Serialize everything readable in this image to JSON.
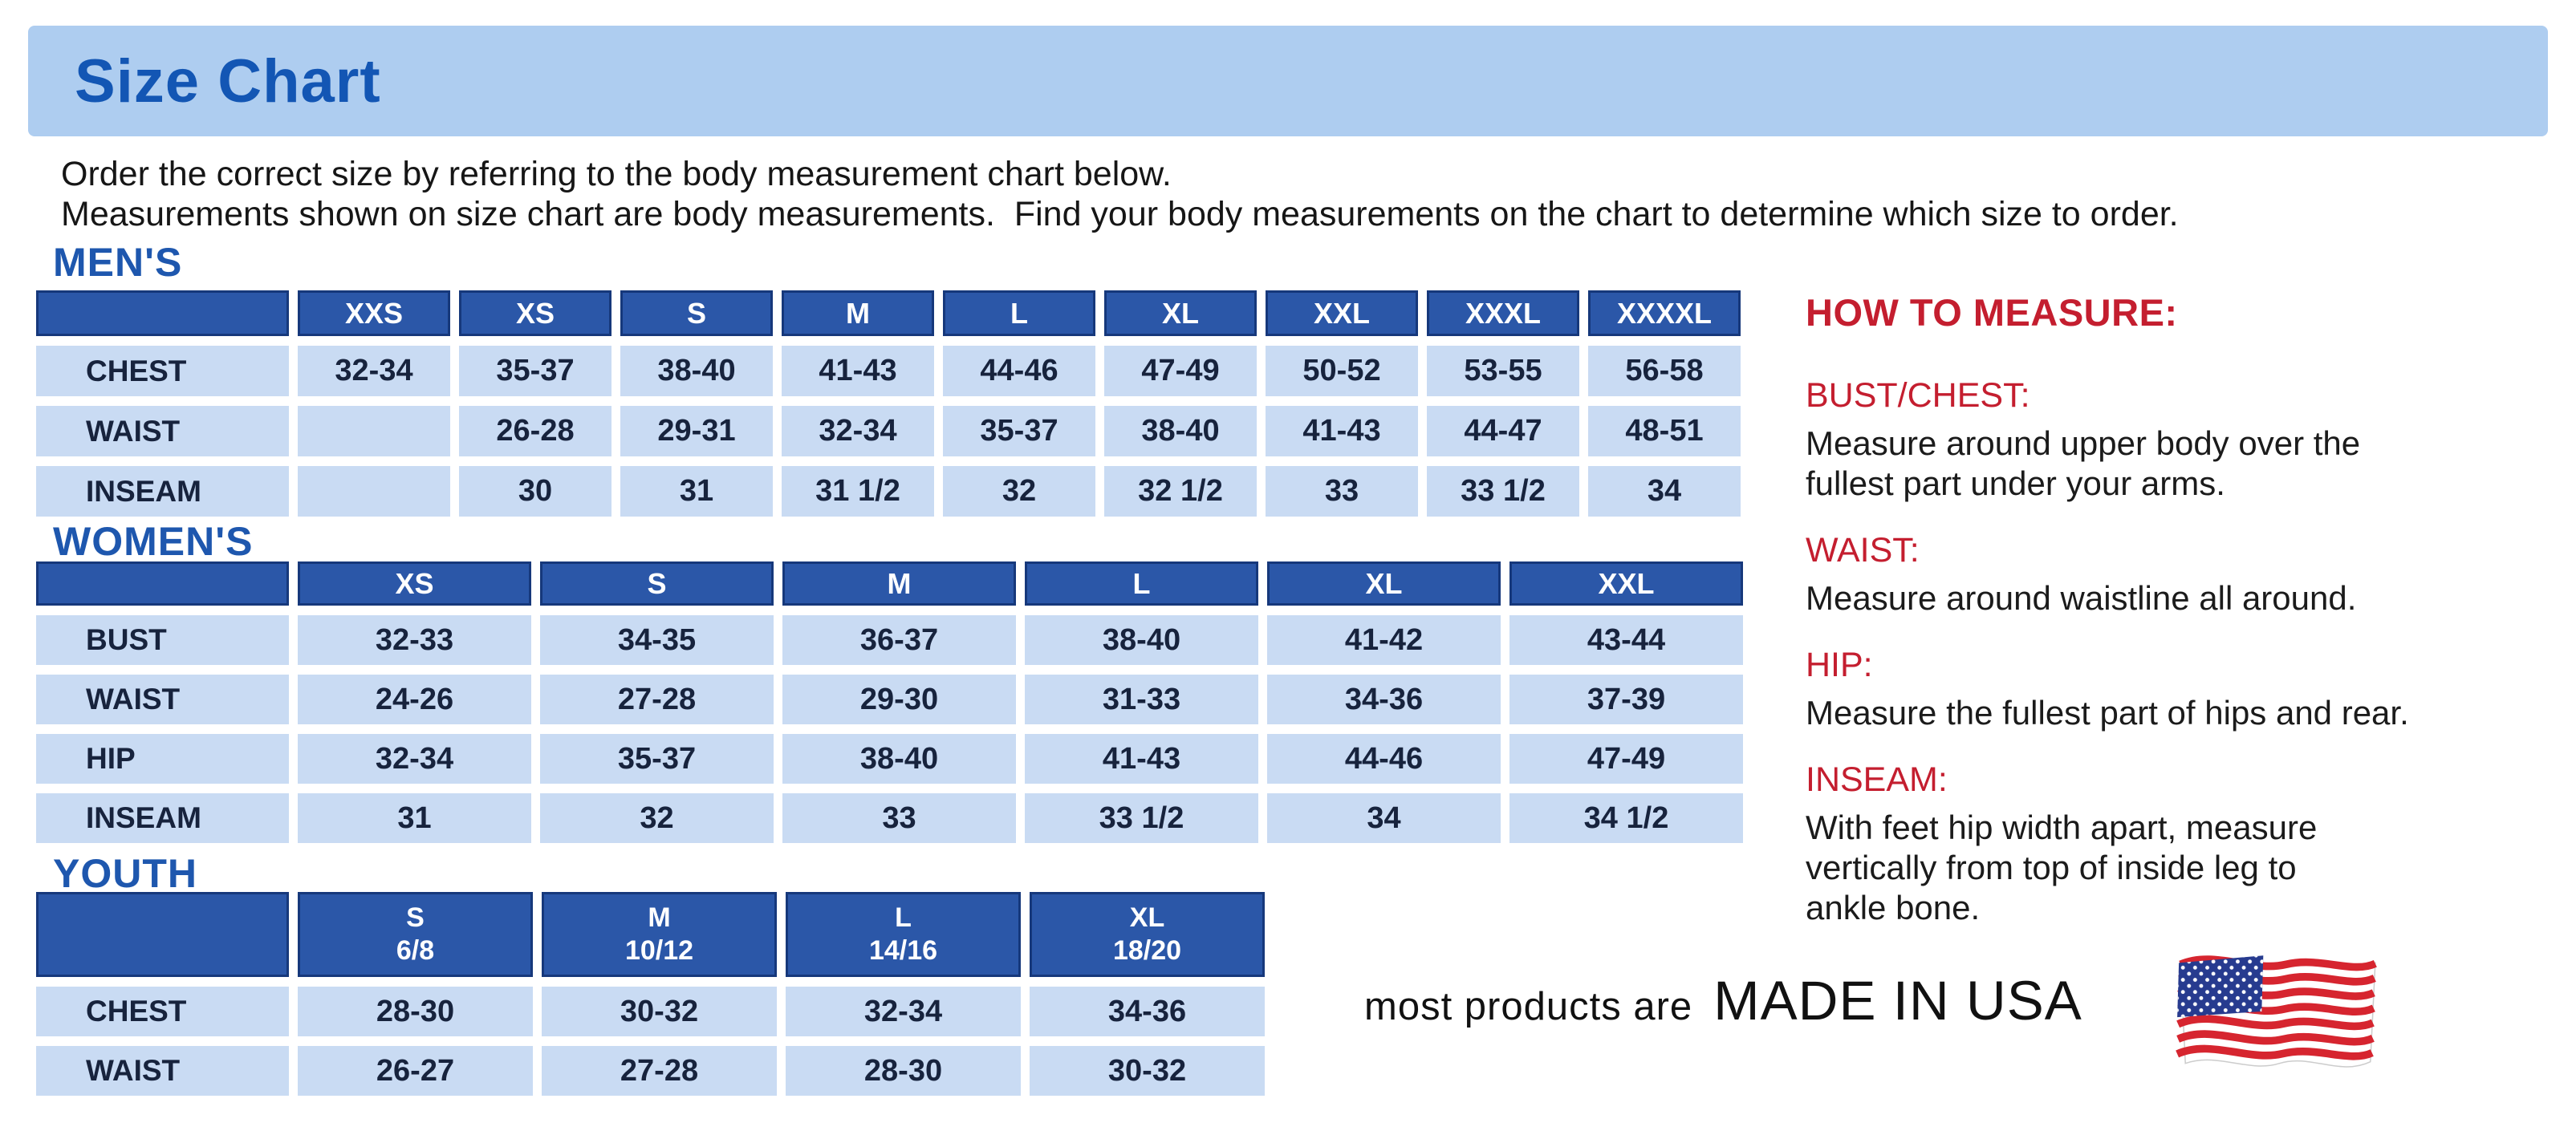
{
  "title": "Size Chart",
  "instructions": {
    "line1": "Order the correct size by referring to the body measurement chart below.",
    "line2": "Measurements shown on size chart are body measurements.  Find your body measurements on the chart to determine which size to order."
  },
  "tables": {
    "mens": {
      "heading": "MEN'S",
      "sizes": [
        "XXS",
        "XS",
        "S",
        "M",
        "L",
        "XL",
        "XXL",
        "XXXL",
        "XXXXL"
      ],
      "rows": [
        {
          "label": "CHEST",
          "values": [
            "32-34",
            "35-37",
            "38-40",
            "41-43",
            "44-46",
            "47-49",
            "50-52",
            "53-55",
            "56-58"
          ]
        },
        {
          "label": "WAIST",
          "values": [
            "",
            "26-28",
            "29-31",
            "32-34",
            "35-37",
            "38-40",
            "41-43",
            "44-47",
            "48-51"
          ]
        },
        {
          "label": "INSEAM",
          "values": [
            "",
            "30",
            "31",
            "31 1/2",
            "32",
            "32 1/2",
            "33",
            "33 1/2",
            "34"
          ]
        }
      ]
    },
    "womens": {
      "heading": "WOMEN'S",
      "sizes": [
        "XS",
        "S",
        "M",
        "L",
        "XL",
        "XXL"
      ],
      "rows": [
        {
          "label": "BUST",
          "values": [
            "32-33",
            "34-35",
            "36-37",
            "38-40",
            "41-42",
            "43-44"
          ]
        },
        {
          "label": "WAIST",
          "values": [
            "24-26",
            "27-28",
            "29-30",
            "31-33",
            "34-36",
            "37-39"
          ]
        },
        {
          "label": "HIP",
          "values": [
            "32-34",
            "35-37",
            "38-40",
            "41-43",
            "44-46",
            "47-49"
          ]
        },
        {
          "label": "INSEAM",
          "values": [
            "31",
            "32",
            "33",
            "33 1/2",
            "34",
            "34 1/2"
          ]
        }
      ]
    },
    "youth": {
      "heading": "YOUTH",
      "sizes": [
        {
          "label": "S",
          "range": "6/8"
        },
        {
          "label": "M",
          "range": "10/12"
        },
        {
          "label": "L",
          "range": "14/16"
        },
        {
          "label": "XL",
          "range": "18/20"
        }
      ],
      "rows": [
        {
          "label": "CHEST",
          "values": [
            "28-30",
            "30-32",
            "32-34",
            "34-36"
          ]
        },
        {
          "label": "WAIST",
          "values": [
            "26-27",
            "27-28",
            "28-30",
            "30-32"
          ]
        }
      ]
    }
  },
  "how_to_measure": {
    "heading": "HOW TO MEASURE:",
    "items": [
      {
        "label": "BUST/CHEST:",
        "text": "Measure around upper body over the\nfullest part under your arms."
      },
      {
        "label": "WAIST:",
        "text": "Measure around waistline all around."
      },
      {
        "label": "HIP:",
        "text": "Measure the fullest part of hips and rear."
      },
      {
        "label": "INSEAM:",
        "text": "With feet hip width apart, measure\nvertically from top of inside leg to\nankle bone."
      }
    ]
  },
  "footer": {
    "prefix": "most products are",
    "made_in": "MADE IN USA",
    "flag_icon": "us-flag-icon"
  },
  "colors": {
    "banner_bg": "#aecdf0",
    "title_blue": "#1356b4",
    "section_heading_blue": "#1e57ae",
    "table_header_bg": "#2b57a8",
    "table_header_border": "#16387b",
    "table_cell_bg": "#c9dbf3",
    "accent_red": "#c41e2f",
    "flag_red": "#d6252f",
    "flag_blue": "#273b8f"
  }
}
